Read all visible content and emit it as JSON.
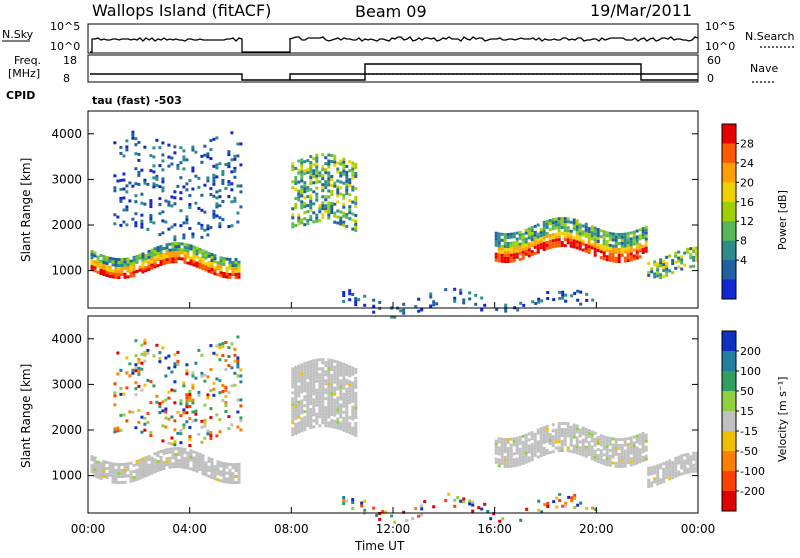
{
  "header": {
    "station": "Wallops Island (fitACF)",
    "beam": "Beam 09",
    "date": "19/Mar/2011"
  },
  "status_panels": {
    "nsky_label": "N.Sky",
    "nsky_top": "10^5",
    "nsky_bottom": "10^0",
    "nsearch_top": "10^5",
    "nsearch_bottom": "10^0",
    "nsearch_label": "N.Search",
    "freq_label_1": "Freq.",
    "freq_label_2": "[MHz]",
    "freq_top": "18",
    "freq_bottom": "8",
    "nave_top": "60",
    "nave_bottom": "0",
    "nave_label": "Nave",
    "cpid_label": "CPID",
    "cpid_value": "tau (fast) -503"
  },
  "chart_data": [
    {
      "type": "heatmap",
      "panel": "power",
      "ylabel": "Slant Range [km]",
      "xlabel": "",
      "x_ticks": [
        "00:00",
        "04:00",
        "08:00",
        "12:00",
        "16:00",
        "20:00",
        "00:00"
      ],
      "xlim_hours": [
        0,
        24
      ],
      "y_ticks": [
        1000,
        2000,
        3000,
        4000
      ],
      "ylim": [
        180,
        4500
      ],
      "colorbar": {
        "label": "Power [dB]",
        "ticks": [
          "28",
          "24",
          "20",
          "16",
          "12",
          "8",
          "4"
        ],
        "colors": [
          "#e60000",
          "#ff5a00",
          "#ffa000",
          "#f0d200",
          "#a0d000",
          "#58b858",
          "#2c8c8c",
          "#2060a0",
          "#1028d0"
        ]
      },
      "bands": [
        {
          "start": 0.1,
          "end": 6.0,
          "range_from": 1050,
          "range_to": 1450,
          "level": "high"
        },
        {
          "start": 16.0,
          "end": 22.0,
          "range_from": 1400,
          "range_to": 2000,
          "level": "high"
        },
        {
          "start": 22.0,
          "end": 24.0,
          "range_from": 950,
          "range_to": 1350,
          "level": "mid"
        },
        {
          "start": 8.0,
          "end": 10.5,
          "range_from": 1900,
          "range_to": 3400,
          "level": "mid"
        },
        {
          "start": 1.0,
          "end": 6.0,
          "range_from": 1800,
          "range_to": 3900,
          "level": "low"
        },
        {
          "start": 10.0,
          "end": 20.0,
          "range_from": 180,
          "range_to": 450,
          "level": "low"
        }
      ]
    },
    {
      "type": "heatmap",
      "panel": "velocity",
      "ylabel": "Slant Range [km]",
      "xlabel": "Time UT",
      "x_ticks": [
        "00:00",
        "04:00",
        "08:00",
        "12:00",
        "16:00",
        "20:00",
        "00:00"
      ],
      "xlim_hours": [
        0,
        24
      ],
      "y_ticks": [
        1000,
        2000,
        3000,
        4000
      ],
      "ylim": [
        180,
        4500
      ],
      "colorbar": {
        "label": "Velocity [m s⁻¹]",
        "ticks": [
          "200",
          "100",
          "50",
          "15",
          "-15",
          "-50",
          "-100",
          "-200"
        ],
        "colors": [
          "#1030c0",
          "#2080a0",
          "#30a060",
          "#90d040",
          "#c0c0c0",
          "#f0c000",
          "#ff8000",
          "#ff4000",
          "#e00000"
        ]
      },
      "bands": [
        {
          "start": 0.1,
          "end": 6.0,
          "range_from": 1050,
          "range_to": 1450,
          "level": "ground"
        },
        {
          "start": 16.0,
          "end": 22.0,
          "range_from": 1400,
          "range_to": 2000,
          "level": "ground"
        },
        {
          "start": 22.0,
          "end": 24.0,
          "range_from": 950,
          "range_to": 1350,
          "level": "ground"
        },
        {
          "start": 8.0,
          "end": 10.5,
          "range_from": 1900,
          "range_to": 3400,
          "level": "ground"
        },
        {
          "start": 1.0,
          "end": 6.0,
          "range_from": 1800,
          "range_to": 3900,
          "level": "scatter"
        },
        {
          "start": 10.0,
          "end": 20.0,
          "range_from": 180,
          "range_to": 450,
          "level": "scatter"
        }
      ]
    }
  ]
}
